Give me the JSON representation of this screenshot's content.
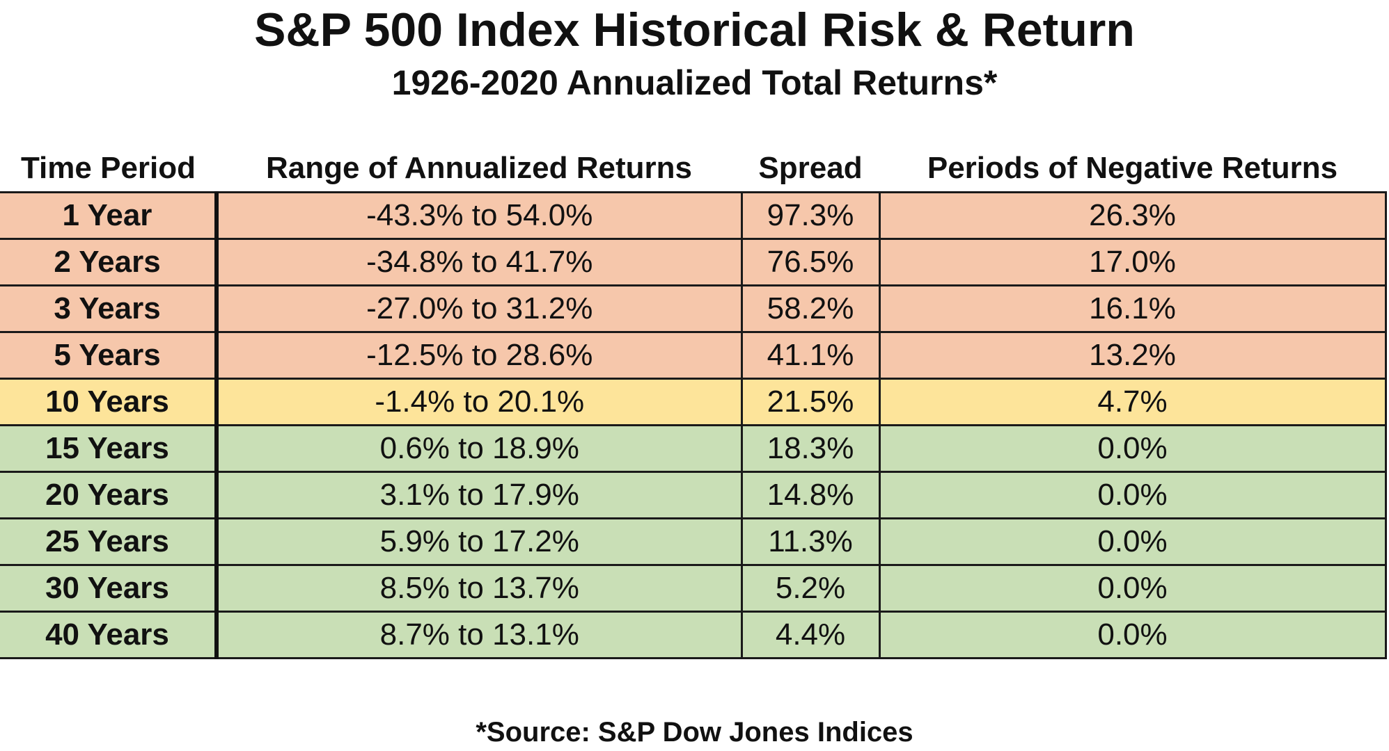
{
  "chart_data": {
    "type": "table",
    "title": "S&P 500 Index Historical Risk & Return",
    "subtitle": "1926-2020 Annualized Total Returns*",
    "columns": [
      "Time Period",
      "Range of Annualized Returns",
      "Spread",
      "Periods of Negative Returns"
    ],
    "rows": [
      {
        "period": "1 Year",
        "range": "-43.3% to 54.0%",
        "spread": "97.3%",
        "negative": "26.3%",
        "zone": "red"
      },
      {
        "period": "2 Years",
        "range": "-34.8% to 41.7%",
        "spread": "76.5%",
        "negative": "17.0%",
        "zone": "red"
      },
      {
        "period": "3 Years",
        "range": "-27.0% to 31.2%",
        "spread": "58.2%",
        "negative": "16.1%",
        "zone": "red"
      },
      {
        "period": "5 Years",
        "range": "-12.5% to 28.6%",
        "spread": "41.1%",
        "negative": "13.2%",
        "zone": "red"
      },
      {
        "period": "10 Years",
        "range": "-1.4% to 20.1%",
        "spread": "21.5%",
        "negative": "4.7%",
        "zone": "yellow"
      },
      {
        "period": "15 Years",
        "range": "0.6% to 18.9%",
        "spread": "18.3%",
        "negative": "0.0%",
        "zone": "green"
      },
      {
        "period": "20 Years",
        "range": "3.1% to 17.9%",
        "spread": "14.8%",
        "negative": "0.0%",
        "zone": "green"
      },
      {
        "period": "25 Years",
        "range": "5.9% to 17.2%",
        "spread": "11.3%",
        "negative": "0.0%",
        "zone": "green"
      },
      {
        "period": "30 Years",
        "range": "8.5% to 13.7%",
        "spread": "5.2%",
        "negative": "0.0%",
        "zone": "green"
      },
      {
        "period": "40 Years",
        "range": "8.7% to 13.1%",
        "spread": "4.4%",
        "negative": "0.0%",
        "zone": "green"
      }
    ],
    "zone_colors": {
      "red": "#f6c7ab",
      "yellow": "#fde49a",
      "green": "#c9dfb6"
    },
    "footnote": "*Source: S&P Dow Jones Indices"
  }
}
